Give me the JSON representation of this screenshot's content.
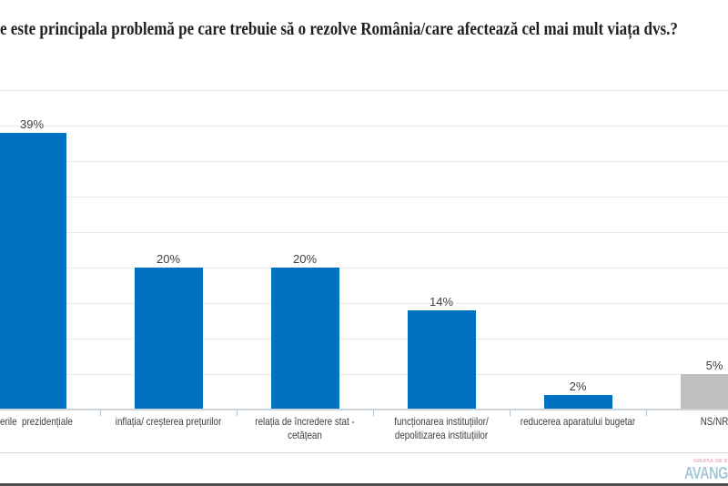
{
  "title": "e este principala problemă pe care trebuie să o rezolve România/care afectează cel mai mult viața dvs.?",
  "chart_data": {
    "type": "bar",
    "title": "e este principala problemă pe care trebuie să o rezolve România/care afectează cel mai mult viața dvs.?",
    "categories": [
      "erile  prezidențiale",
      "inflația/ creșterea prețurilor",
      "relația de încredere stat -\ncetățean",
      "funcționarea instituțiilor/\ndepolitizarea instituțiilor",
      "reducerea aparatului bugetar",
      "NS/NR"
    ],
    "values": [
      39,
      20,
      20,
      14,
      2,
      5
    ],
    "value_labels": [
      "39%",
      "20%",
      "20%",
      "14%",
      "2%",
      "5%"
    ],
    "bar_colors": [
      "#0070C0",
      "#0070C0",
      "#0070C0",
      "#0070C0",
      "#0070C0",
      "#BFBFBF"
    ],
    "xlabel": "",
    "ylabel": "",
    "ylim": [
      0,
      45
    ],
    "grid": true,
    "gridline_step_pct": 5,
    "legend": "none",
    "colors": {
      "bar_blue": "#0070C0",
      "bar_gray": "#BFBFBF",
      "gridline": "#EAEAEA",
      "axis_line": "#CCD3DA",
      "label_text": "#3D3D3D"
    }
  },
  "branding": {
    "logo_text": "AVANGARDE",
    "tagline": "GRUPUL DE STUDII SOCIOCOMPORTAMENTALE",
    "logo_color": "#A6C8D8",
    "tagline_color": "#E08AA2"
  }
}
